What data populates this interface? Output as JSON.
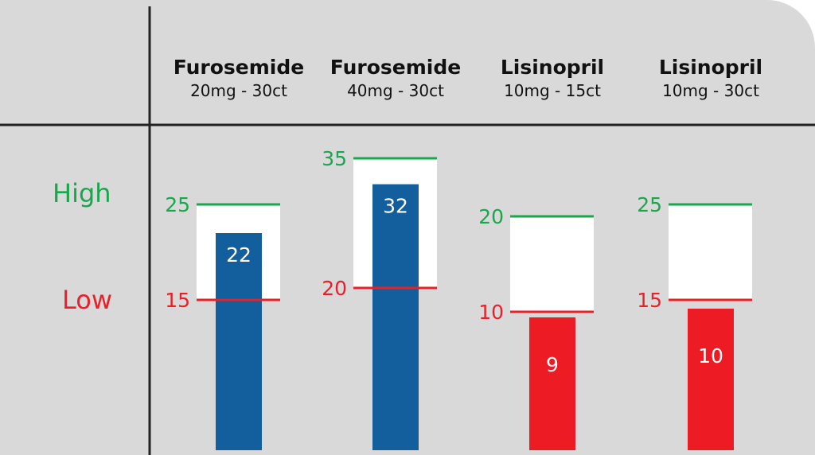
{
  "row_labels": {
    "high": "High",
    "low": "Low"
  },
  "colors": {
    "panel_bg": "#d9d9d9",
    "high": "#1aa64b",
    "low": "#e8202a",
    "in_range_bar": "#135e9c",
    "below_range_bar": "#ed1c24",
    "divider": "#222222"
  },
  "chart_data": {
    "type": "bar",
    "categories": [
      {
        "name": "Furosemide",
        "detail": "20mg - 30ct"
      },
      {
        "name": "Furosemide",
        "detail": "40mg - 30ct"
      },
      {
        "name": "Lisinopril",
        "detail": "10mg - 15ct"
      },
      {
        "name": "Lisinopril",
        "detail": "10mg - 30ct"
      }
    ],
    "values": [
      22,
      32,
      9,
      10
    ],
    "low": [
      15,
      20,
      10,
      15
    ],
    "high": [
      25,
      35,
      20,
      25
    ]
  }
}
